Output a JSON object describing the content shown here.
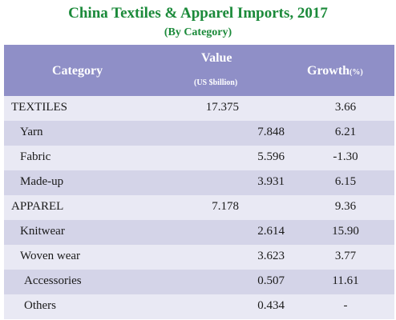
{
  "title": "China Textiles & Apparel Imports, 2017",
  "subtitle": "(By Category)",
  "header": {
    "category": "Category",
    "value": "Value",
    "value_unit": "(US $billion)",
    "growth": "Growth",
    "growth_unit": "(%)"
  },
  "chart_data": {
    "type": "table",
    "title": "China Textiles & Apparel Imports, 2017",
    "subtitle": "(By Category)",
    "columns": [
      "Category",
      "Value (US $billion)",
      "Growth(%)"
    ],
    "rows": [
      {
        "category": "TEXTILES",
        "value": "17.375",
        "growth": "3.66",
        "level": 0
      },
      {
        "category": "Yarn",
        "value": "7.848",
        "growth": "6.21",
        "level": 1
      },
      {
        "category": "Fabric",
        "value": "5.596",
        "growth": "-1.30",
        "level": 1
      },
      {
        "category": "Made-up",
        "value": "3.931",
        "growth": "6.15",
        "level": 1
      },
      {
        "category": "APPAREL",
        "value": "7.178",
        "growth": "9.36",
        "level": 0
      },
      {
        "category": "Knitwear",
        "value": "2.614",
        "growth": "15.90",
        "level": 1
      },
      {
        "category": "Woven wear",
        "value": "3.623",
        "growth": "3.77",
        "level": 1
      },
      {
        "category": "Accessories",
        "value": "0.507",
        "growth": "11.61",
        "level": 2
      },
      {
        "category": "Others",
        "value": "0.434",
        "growth": "-",
        "level": 2
      }
    ]
  }
}
